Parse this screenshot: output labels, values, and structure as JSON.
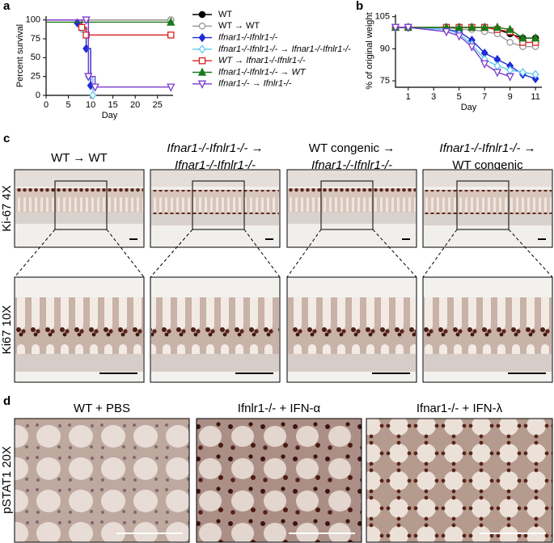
{
  "panels": {
    "a": "a",
    "b": "b",
    "c": "c",
    "d": "d"
  },
  "chart_data": [
    {
      "type": "survival",
      "ylabel": "Percent survival",
      "xlabel": "Day",
      "xlim": [
        0,
        28.5
      ],
      "xticks": [
        0,
        5,
        10,
        15,
        20,
        25
      ],
      "ylim": [
        0,
        105
      ],
      "yticks": [
        0,
        25,
        50,
        75,
        100
      ],
      "series": [
        {
          "name": "WT",
          "color": "#000000",
          "marker": "circle",
          "open": false,
          "x": [
            0,
            28
          ],
          "values": [
            100,
            100
          ]
        },
        {
          "name": "WT → WT",
          "color": "#999999",
          "marker": "circle",
          "open": true,
          "x": [
            0,
            28
          ],
          "values": [
            100,
            100
          ]
        },
        {
          "name": "Ifnar1-/-Ifnlr1-/-",
          "color": "#1f2bd6",
          "marker": "diamond",
          "open": false,
          "x": [
            0,
            7,
            8,
            9,
            10
          ],
          "values": [
            100,
            96,
            90,
            62,
            13
          ]
        },
        {
          "name": "Ifnar1-/-Ifnlr1-/- → Ifnar1-/-Ifnlr1-/-",
          "color": "#5ec8f0",
          "marker": "diamond",
          "open": true,
          "x": [
            0,
            8,
            9.5,
            10.5
          ],
          "values": [
            100,
            88,
            25,
            0
          ]
        },
        {
          "name": "WT → Ifnar1-/-Ifnlr1-/-",
          "color": "#d62020",
          "marker": "square",
          "open": true,
          "x": [
            0,
            8,
            9,
            28
          ],
          "values": [
            100,
            90,
            80,
            80
          ]
        },
        {
          "name": "Ifnar1-/-Ifnlr1-/- → WT",
          "color": "#1a7a1a",
          "marker": "triangle",
          "open": false,
          "x": [
            0,
            28
          ],
          "values": [
            97,
            97
          ]
        },
        {
          "name": "Ifnar1-/- → Ifnlr1-/-",
          "color": "#7a3ad0",
          "marker": "triangle-down",
          "open": true,
          "x": [
            0,
            9,
            9.5,
            11,
            28
          ],
          "values": [
            100,
            100,
            25,
            11,
            11
          ]
        }
      ]
    },
    {
      "type": "line",
      "ylabel": "% of original weight",
      "xlabel": "Day",
      "xlim": [
        0,
        11.5
      ],
      "xticks": [
        1,
        3,
        5,
        7,
        9,
        11
      ],
      "ylim": [
        72,
        106
      ],
      "yticks": [
        75,
        90,
        105
      ],
      "x": [
        0,
        1,
        4,
        5,
        6,
        7,
        8,
        9,
        10,
        11
      ],
      "series": [
        {
          "color": "#000000",
          "marker": "circle",
          "open": false,
          "values": [
            100,
            100,
            100,
            100,
            100,
            100,
            99,
            97,
            95,
            95
          ]
        },
        {
          "color": "#999999",
          "marker": "circle",
          "open": true,
          "values": [
            100,
            100,
            100,
            99,
            99,
            98,
            97,
            93,
            91,
            91
          ]
        },
        {
          "color": "#1f2bd6",
          "marker": "diamond",
          "open": false,
          "values": [
            100,
            100,
            99,
            98,
            94,
            88,
            85,
            82,
            78,
            76
          ]
        },
        {
          "color": "#5ec8f0",
          "marker": "diamond",
          "open": true,
          "values": [
            100,
            100,
            99,
            97,
            92,
            85,
            82,
            80,
            79,
            78
          ]
        },
        {
          "color": "#d62020",
          "marker": "square",
          "open": true,
          "values": [
            100,
            100,
            100,
            100,
            100,
            100,
            99,
            98,
            93,
            93
          ]
        },
        {
          "color": "#1a7a1a",
          "marker": "triangle",
          "open": false,
          "values": [
            100,
            100,
            100,
            100,
            100,
            100,
            100,
            99,
            95,
            95
          ]
        },
        {
          "color": "#7a3ad0",
          "marker": "triangle-down",
          "open": true,
          "values": [
            100,
            100,
            98,
            96,
            91,
            83,
            79,
            77,
            null,
            null
          ]
        }
      ]
    }
  ],
  "panel_c": {
    "columns": [
      [
        "WT → WT"
      ],
      [
        "Ifnar1-/-Ifnlr1-/- →",
        "Ifnar1-/-Ifnlr1-/-"
      ],
      [
        "WT congenic →",
        "Ifnar1-/-Ifnlr1-/-"
      ],
      [
        "Ifnar1-/-Ifnlr1-/- →",
        "WT congenic"
      ]
    ],
    "rows": [
      "Ki-67 4X",
      "Ki67 10X"
    ]
  },
  "panel_d": {
    "columns": [
      "WT + PBS",
      "Ifnlr1-/- + IFN-α",
      "Ifnar1-/- + IFN-λ"
    ],
    "rows": [
      "pSTAT1 20X"
    ]
  }
}
